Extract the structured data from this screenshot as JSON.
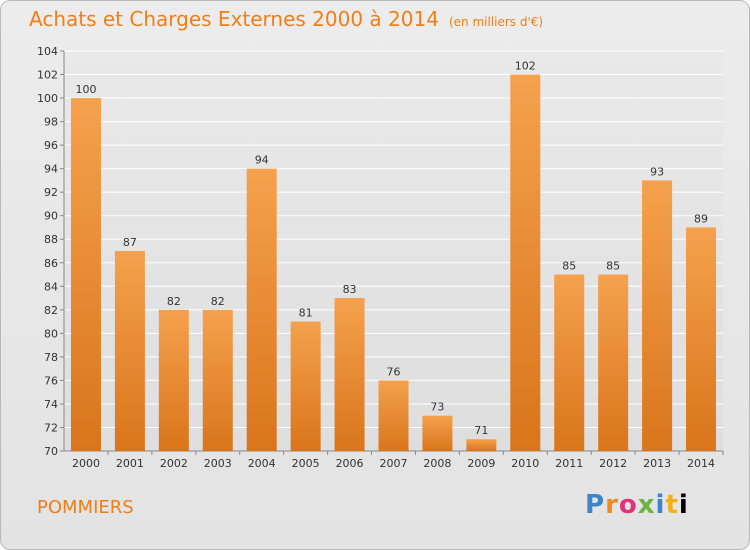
{
  "header": {
    "title": "Achats et Charges Externes 2000 à 2014",
    "unit": "(en milliers d'€)"
  },
  "footer": {
    "commune": "POMMIERS",
    "logo_text": "Proxiti"
  },
  "colors": {
    "title": "#f07f16",
    "bar_top": "#f5a14d",
    "bar_bottom": "#d9751b",
    "grid": "#ffffff",
    "axis_text": "#333333"
  },
  "chart_data": {
    "type": "bar",
    "categories": [
      "2000",
      "2001",
      "2002",
      "2003",
      "2004",
      "2005",
      "2006",
      "2007",
      "2008",
      "2009",
      "2010",
      "2011",
      "2012",
      "2013",
      "2014"
    ],
    "values": [
      100,
      87,
      82,
      82,
      94,
      81,
      83,
      76,
      73,
      71,
      102,
      85,
      85,
      93,
      89
    ],
    "ylim": [
      70,
      104
    ],
    "yticks": [
      70,
      72,
      74,
      76,
      78,
      80,
      82,
      84,
      86,
      88,
      90,
      92,
      94,
      96,
      98,
      100,
      102,
      104
    ],
    "grid": true,
    "data_labels": true
  }
}
